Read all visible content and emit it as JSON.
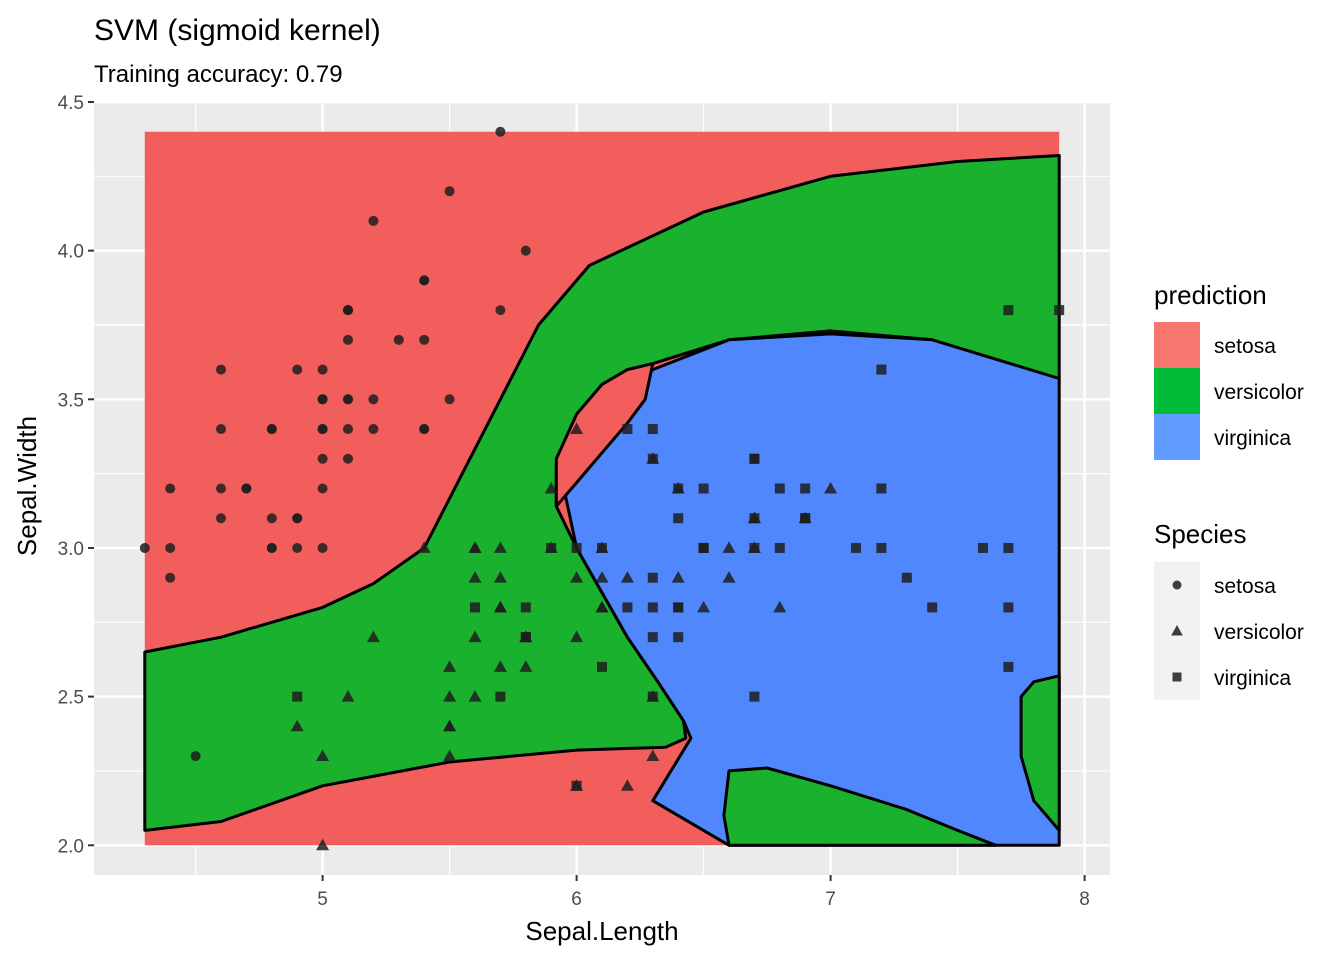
{
  "chart_data": {
    "type": "scatter",
    "title": "SVM (sigmoid kernel)",
    "subtitle": "Training accuracy: 0.79",
    "xlabel": "Sepal.Length",
    "ylabel": "Sepal.Width",
    "xlim": [
      4.1,
      8.1
    ],
    "ylim": [
      1.9,
      4.5
    ],
    "x_ticks": [
      5,
      6,
      7,
      8
    ],
    "y_ticks": [
      2.0,
      2.5,
      3.0,
      3.5,
      4.0,
      4.5
    ],
    "x_tick_labels": [
      "5",
      "6",
      "7",
      "8"
    ],
    "y_tick_labels": [
      "2.0",
      "2.5",
      "3.0",
      "3.5",
      "4.0",
      "4.5"
    ],
    "grid": true,
    "legend_position": "right",
    "fill_legend": {
      "title": "prediction",
      "items": [
        {
          "label": "setosa",
          "color": "#F8766D"
        },
        {
          "label": "versicolor",
          "color": "#00BA38"
        },
        {
          "label": "virginica",
          "color": "#619CFF"
        }
      ]
    },
    "shape_legend": {
      "title": "Species",
      "items": [
        {
          "label": "setosa",
          "shape": "circle"
        },
        {
          "label": "versicolor",
          "shape": "triangle"
        },
        {
          "label": "virginica",
          "shape": "square"
        }
      ]
    },
    "region_colors": {
      "setosa": "#F15E5C",
      "versicolor": "#1AB12F",
      "virginica": "#5087FC"
    },
    "prediction_regions": [
      {
        "class": "versicolor",
        "boundary": [
          [
            4.3,
            2.65
          ],
          [
            4.6,
            2.7
          ],
          [
            5.0,
            2.8
          ],
          [
            5.2,
            2.88
          ],
          [
            5.4,
            3.0
          ],
          [
            5.55,
            3.25
          ],
          [
            5.7,
            3.5
          ],
          [
            5.85,
            3.75
          ],
          [
            6.05,
            3.95
          ],
          [
            6.5,
            4.13
          ],
          [
            7.0,
            4.25
          ],
          [
            7.5,
            4.3
          ],
          [
            7.9,
            4.32
          ],
          [
            7.9,
            3.57
          ],
          [
            7.7,
            3.6
          ],
          [
            7.4,
            3.7
          ],
          [
            7.0,
            3.73
          ],
          [
            6.6,
            3.7
          ],
          [
            6.3,
            3.62
          ],
          [
            6.15,
            3.55
          ],
          [
            6.02,
            3.42
          ],
          [
            5.92,
            3.28
          ],
          [
            5.92,
            3.14
          ],
          [
            6.0,
            3.0
          ],
          [
            6.1,
            2.85
          ],
          [
            6.2,
            2.7
          ],
          [
            6.32,
            2.55
          ],
          [
            6.42,
            2.42
          ],
          [
            6.43,
            2.36
          ],
          [
            6.35,
            2.33
          ],
          [
            6.0,
            2.32
          ],
          [
            5.5,
            2.28
          ],
          [
            5.0,
            2.2
          ],
          [
            4.6,
            2.08
          ],
          [
            4.3,
            2.05
          ]
        ]
      },
      {
        "class": "virginica",
        "boundary": [
          [
            6.0,
            3.0
          ],
          [
            5.95,
            3.2
          ],
          [
            6.1,
            3.45
          ],
          [
            6.3,
            3.6
          ],
          [
            6.6,
            3.7
          ],
          [
            7.0,
            3.72
          ],
          [
            7.4,
            3.7
          ],
          [
            7.9,
            3.57
          ],
          [
            7.9,
            2.0
          ],
          [
            6.6,
            2.0
          ],
          [
            6.3,
            2.15
          ],
          [
            6.45,
            2.36
          ],
          [
            6.42,
            2.42
          ],
          [
            6.32,
            2.55
          ],
          [
            6.2,
            2.7
          ],
          [
            6.1,
            2.85
          ]
        ]
      },
      {
        "class": "setosa",
        "boundary": [
          [
            5.92,
            3.14
          ],
          [
            5.92,
            3.3
          ],
          [
            6.0,
            3.45
          ],
          [
            6.1,
            3.55
          ],
          [
            6.2,
            3.6
          ],
          [
            6.3,
            3.62
          ],
          [
            6.27,
            3.5
          ],
          [
            6.2,
            3.42
          ],
          [
            6.1,
            3.32
          ],
          [
            6.0,
            3.22
          ]
        ]
      },
      {
        "class": "versicolor",
        "boundary": [
          [
            6.6,
            2.0
          ],
          [
            6.58,
            2.1
          ],
          [
            6.6,
            2.25
          ],
          [
            6.75,
            2.26
          ],
          [
            7.0,
            2.2
          ],
          [
            7.3,
            2.12
          ],
          [
            7.5,
            2.05
          ],
          [
            7.65,
            2.0
          ]
        ]
      },
      {
        "class": "versicolor",
        "boundary": [
          [
            7.9,
            2.57
          ],
          [
            7.8,
            2.55
          ],
          [
            7.75,
            2.5
          ],
          [
            7.75,
            2.3
          ],
          [
            7.8,
            2.15
          ],
          [
            7.9,
            2.05
          ]
        ]
      }
    ],
    "series": [
      {
        "name": "setosa",
        "shape": "circle",
        "points": [
          [
            5.1,
            3.5
          ],
          [
            4.9,
            3.0
          ],
          [
            4.7,
            3.2
          ],
          [
            4.6,
            3.1
          ],
          [
            5.0,
            3.6
          ],
          [
            5.4,
            3.9
          ],
          [
            4.6,
            3.4
          ],
          [
            5.0,
            3.4
          ],
          [
            4.4,
            2.9
          ],
          [
            4.9,
            3.1
          ],
          [
            5.4,
            3.7
          ],
          [
            4.8,
            3.4
          ],
          [
            4.8,
            3.0
          ],
          [
            4.3,
            3.0
          ],
          [
            5.8,
            4.0
          ],
          [
            5.7,
            4.4
          ],
          [
            5.4,
            3.9
          ],
          [
            5.1,
            3.5
          ],
          [
            5.7,
            3.8
          ],
          [
            5.1,
            3.8
          ],
          [
            5.4,
            3.4
          ],
          [
            5.1,
            3.7
          ],
          [
            4.6,
            3.6
          ],
          [
            5.1,
            3.3
          ],
          [
            4.8,
            3.4
          ],
          [
            5.0,
            3.0
          ],
          [
            5.0,
            3.4
          ],
          [
            5.2,
            3.5
          ],
          [
            5.2,
            3.4
          ],
          [
            4.7,
            3.2
          ],
          [
            4.8,
            3.1
          ],
          [
            5.4,
            3.4
          ],
          [
            5.2,
            4.1
          ],
          [
            5.5,
            4.2
          ],
          [
            4.9,
            3.1
          ],
          [
            5.0,
            3.2
          ],
          [
            5.5,
            3.5
          ],
          [
            4.9,
            3.6
          ],
          [
            4.4,
            3.0
          ],
          [
            5.1,
            3.4
          ],
          [
            5.0,
            3.5
          ],
          [
            4.5,
            2.3
          ],
          [
            4.4,
            3.2
          ],
          [
            5.0,
            3.5
          ],
          [
            5.1,
            3.8
          ],
          [
            4.8,
            3.0
          ],
          [
            5.1,
            3.8
          ],
          [
            4.6,
            3.2
          ],
          [
            5.3,
            3.7
          ],
          [
            5.0,
            3.3
          ]
        ]
      },
      {
        "name": "versicolor",
        "shape": "triangle",
        "points": [
          [
            7.0,
            3.2
          ],
          [
            6.4,
            3.2
          ],
          [
            6.9,
            3.1
          ],
          [
            5.5,
            2.3
          ],
          [
            6.5,
            2.8
          ],
          [
            5.7,
            2.8
          ],
          [
            6.3,
            3.3
          ],
          [
            4.9,
            2.4
          ],
          [
            6.6,
            2.9
          ],
          [
            5.2,
            2.7
          ],
          [
            5.0,
            2.0
          ],
          [
            5.9,
            3.0
          ],
          [
            6.0,
            2.2
          ],
          [
            6.1,
            2.9
          ],
          [
            5.6,
            2.9
          ],
          [
            6.7,
            3.1
          ],
          [
            5.6,
            3.0
          ],
          [
            5.8,
            2.7
          ],
          [
            6.2,
            2.2
          ],
          [
            5.6,
            2.5
          ],
          [
            5.9,
            3.2
          ],
          [
            6.1,
            2.8
          ],
          [
            6.3,
            2.5
          ],
          [
            6.1,
            2.8
          ],
          [
            6.4,
            2.9
          ],
          [
            6.6,
            3.0
          ],
          [
            6.8,
            2.8
          ],
          [
            6.7,
            3.0
          ],
          [
            6.0,
            2.9
          ],
          [
            5.7,
            2.6
          ],
          [
            5.5,
            2.4
          ],
          [
            5.5,
            2.4
          ],
          [
            5.8,
            2.7
          ],
          [
            6.0,
            2.7
          ],
          [
            5.4,
            3.0
          ],
          [
            6.0,
            3.4
          ],
          [
            6.7,
            3.1
          ],
          [
            6.3,
            2.3
          ],
          [
            5.6,
            3.0
          ],
          [
            5.5,
            2.5
          ],
          [
            5.5,
            2.6
          ],
          [
            6.1,
            3.0
          ],
          [
            5.8,
            2.6
          ],
          [
            5.0,
            2.3
          ],
          [
            5.6,
            2.7
          ],
          [
            5.7,
            3.0
          ],
          [
            5.7,
            2.9
          ],
          [
            6.2,
            2.9
          ],
          [
            5.1,
            2.5
          ],
          [
            5.7,
            2.8
          ]
        ]
      },
      {
        "name": "virginica",
        "shape": "square",
        "points": [
          [
            6.3,
            3.3
          ],
          [
            5.8,
            2.7
          ],
          [
            7.1,
            3.0
          ],
          [
            6.3,
            2.9
          ],
          [
            6.5,
            3.0
          ],
          [
            7.6,
            3.0
          ],
          [
            4.9,
            2.5
          ],
          [
            7.3,
            2.9
          ],
          [
            6.7,
            2.5
          ],
          [
            7.2,
            3.6
          ],
          [
            6.5,
            3.2
          ],
          [
            6.4,
            2.7
          ],
          [
            6.8,
            3.0
          ],
          [
            5.7,
            2.5
          ],
          [
            5.8,
            2.8
          ],
          [
            6.4,
            3.2
          ],
          [
            6.5,
            3.0
          ],
          [
            7.7,
            3.8
          ],
          [
            7.7,
            2.6
          ],
          [
            6.0,
            2.2
          ],
          [
            6.9,
            3.2
          ],
          [
            5.6,
            2.8
          ],
          [
            7.7,
            2.8
          ],
          [
            6.3,
            2.7
          ],
          [
            6.7,
            3.3
          ],
          [
            7.2,
            3.2
          ],
          [
            6.2,
            2.8
          ],
          [
            6.1,
            3.0
          ],
          [
            6.4,
            2.8
          ],
          [
            7.2,
            3.0
          ],
          [
            7.4,
            2.8
          ],
          [
            7.9,
            3.8
          ],
          [
            6.4,
            2.8
          ],
          [
            6.3,
            2.8
          ],
          [
            6.1,
            2.6
          ],
          [
            7.7,
            3.0
          ],
          [
            6.3,
            3.4
          ],
          [
            6.4,
            3.1
          ],
          [
            6.0,
            3.0
          ],
          [
            6.9,
            3.1
          ],
          [
            6.7,
            3.1
          ],
          [
            6.9,
            3.1
          ],
          [
            5.8,
            2.7
          ],
          [
            6.8,
            3.2
          ],
          [
            6.7,
            3.3
          ],
          [
            6.7,
            3.0
          ],
          [
            6.3,
            2.5
          ],
          [
            6.5,
            3.0
          ],
          [
            6.2,
            3.4
          ],
          [
            5.9,
            3.0
          ]
        ]
      }
    ]
  }
}
